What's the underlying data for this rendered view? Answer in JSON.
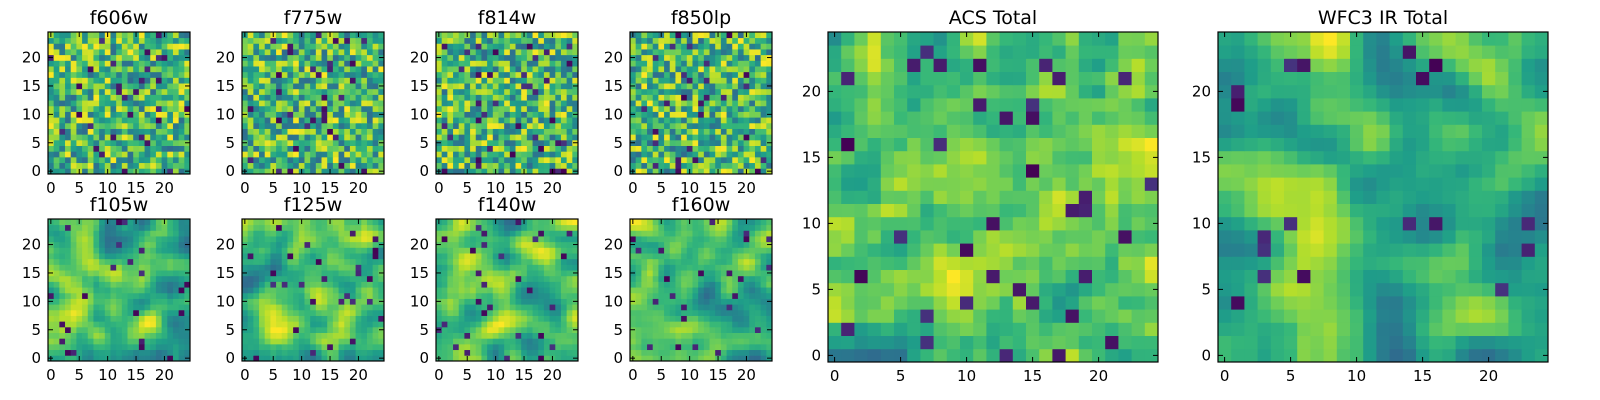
{
  "figure": {
    "description_free": true
  },
  "colormap": {
    "name": "viridis",
    "stops": [
      "#440154",
      "#482878",
      "#3e4989",
      "#31688e",
      "#26828e",
      "#1f9e89",
      "#35b779",
      "#6ece58",
      "#b5de2b",
      "#fde725"
    ]
  },
  "chart_data": [
    {
      "type": "heatmap",
      "title": "f606w",
      "grid_size": 25,
      "xlim": [
        0,
        24
      ],
      "ylim": [
        0,
        24
      ],
      "xticks": [
        0,
        5,
        10,
        15,
        20
      ],
      "yticks": [
        0,
        5,
        10,
        15,
        20
      ],
      "texture": "noise",
      "seed": 11
    },
    {
      "type": "heatmap",
      "title": "f775w",
      "grid_size": 25,
      "xlim": [
        0,
        24
      ],
      "ylim": [
        0,
        24
      ],
      "xticks": [
        0,
        5,
        10,
        15,
        20
      ],
      "yticks": [
        0,
        5,
        10,
        15,
        20
      ],
      "texture": "noise",
      "seed": 23
    },
    {
      "type": "heatmap",
      "title": "f814w",
      "grid_size": 25,
      "xlim": [
        0,
        24
      ],
      "ylim": [
        0,
        24
      ],
      "xticks": [
        0,
        5,
        10,
        15,
        20
      ],
      "yticks": [
        0,
        5,
        10,
        15,
        20
      ],
      "texture": "noise",
      "seed": 37
    },
    {
      "type": "heatmap",
      "title": "f850lp",
      "grid_size": 25,
      "xlim": [
        0,
        24
      ],
      "ylim": [
        0,
        24
      ],
      "xticks": [
        0,
        5,
        10,
        15,
        20
      ],
      "yticks": [
        0,
        5,
        10,
        15,
        20
      ],
      "texture": "noise",
      "seed": 41
    },
    {
      "type": "heatmap",
      "title": "f105w",
      "grid_size": 25,
      "xlim": [
        0,
        24
      ],
      "ylim": [
        0,
        24
      ],
      "xticks": [
        0,
        5,
        10,
        15,
        20
      ],
      "yticks": [
        0,
        5,
        10,
        15,
        20
      ],
      "texture": "smooth",
      "seed": 53
    },
    {
      "type": "heatmap",
      "title": "f125w",
      "grid_size": 25,
      "xlim": [
        0,
        24
      ],
      "ylim": [
        0,
        24
      ],
      "xticks": [
        0,
        5,
        10,
        15,
        20
      ],
      "yticks": [
        0,
        5,
        10,
        15,
        20
      ],
      "texture": "smooth",
      "seed": 67
    },
    {
      "type": "heatmap",
      "title": "f140w",
      "grid_size": 25,
      "xlim": [
        0,
        24
      ],
      "ylim": [
        0,
        24
      ],
      "xticks": [
        0,
        5,
        10,
        15,
        20
      ],
      "yticks": [
        0,
        5,
        10,
        15,
        20
      ],
      "texture": "smooth",
      "seed": 71
    },
    {
      "type": "heatmap",
      "title": "f160w",
      "grid_size": 25,
      "xlim": [
        0,
        24
      ],
      "ylim": [
        0,
        24
      ],
      "xticks": [
        0,
        5,
        10,
        15,
        20
      ],
      "yticks": [
        0,
        5,
        10,
        15,
        20
      ],
      "texture": "smooth",
      "seed": 83
    },
    {
      "type": "heatmap",
      "title": "ACS Total",
      "grid_size": 25,
      "xlim": [
        0,
        24
      ],
      "ylim": [
        0,
        24
      ],
      "xticks": [
        0,
        5,
        10,
        15,
        20
      ],
      "yticks": [
        0,
        5,
        10,
        15,
        20
      ],
      "texture": "mixed",
      "seed": 97
    },
    {
      "type": "heatmap",
      "title": "WFC3 IR Total",
      "grid_size": 25,
      "xlim": [
        0,
        24
      ],
      "ylim": [
        0,
        24
      ],
      "xticks": [
        0,
        5,
        10,
        15,
        20
      ],
      "yticks": [
        0,
        5,
        10,
        15,
        20
      ],
      "texture": "smooth",
      "seed": 101
    }
  ]
}
